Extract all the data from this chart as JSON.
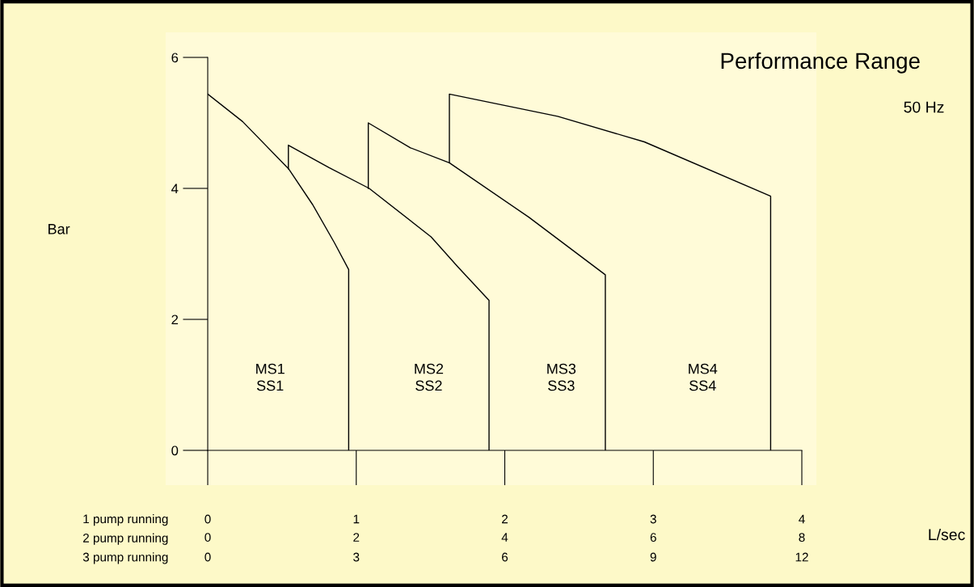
{
  "chart_data": {
    "type": "line",
    "title": "Performance Range",
    "annotations": [
      "50 Hz",
      "Bar",
      "L/sec",
      "1 pump running",
      "2 pump running",
      "3 pump running",
      "MS1\nSS1",
      "MS2\nSS2",
      "MS3\nSS3",
      "MS4\nSS4",
      "0",
      "3",
      "6",
      "9",
      "12"
    ],
    "series": [
      {
        "color": "#000000",
        "x": [
          0,
          0.235,
          0.544,
          0.707,
          0.853,
          0.949,
          0.949
        ],
        "values": [
          5.44,
          5.02,
          4.3,
          3.75,
          3.17,
          2.76,
          0
        ]
      },
      {
        "color": "#000000",
        "x": [
          0.543,
          0.543,
          0.815,
          1.087,
          1.504,
          1.685,
          1.894,
          1.894
        ],
        "values": [
          4.3,
          4.66,
          4.32,
          4.0,
          3.26,
          2.8,
          2.29,
          0
        ]
      },
      {
        "color": "#000000",
        "x": [
          1.081,
          1.081,
          1.365,
          1.627,
          2.162,
          2.677,
          2.677
        ],
        "values": [
          4.0,
          5.0,
          4.62,
          4.39,
          3.56,
          2.68,
          0
        ]
      },
      {
        "color": "#000000",
        "x": [
          1.627,
          1.627,
          2.356,
          2.94,
          3.79,
          3.79
        ],
        "values": [
          4.39,
          5.44,
          5.1,
          4.71,
          3.88,
          0
        ]
      }
    ],
    "xlim": [
      0,
      4
    ],
    "xticks": [
      0,
      1,
      2,
      3,
      4
    ],
    "x2lim": [
      0,
      8
    ],
    "x2ticks": [
      0,
      2,
      4,
      6,
      8
    ],
    "ylim": [
      0,
      6
    ],
    "yticks": [
      0,
      2,
      4,
      6
    ],
    "grid": false,
    "legend": false,
    "marker": "none",
    "line_style": "solid"
  }
}
